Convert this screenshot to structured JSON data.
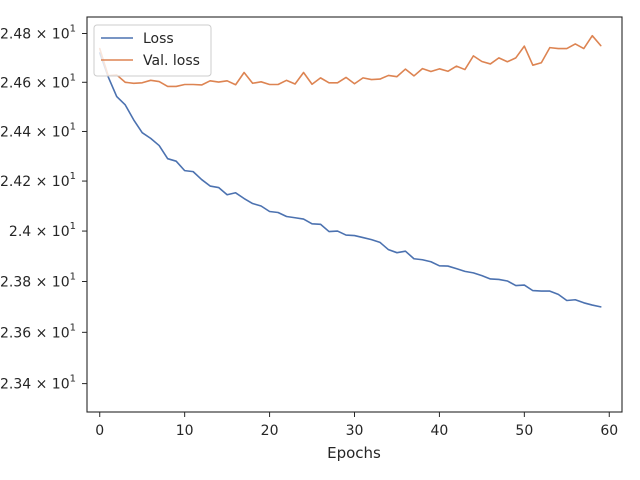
{
  "chart_data": {
    "type": "line",
    "title": "",
    "xlabel": "Epochs",
    "ylabel": "",
    "xlim": [
      -1.5,
      61.5
    ],
    "ylim": [
      23.29,
      24.868
    ],
    "y_log_scale": true,
    "grid": false,
    "legend_position": "top-left",
    "x_ticks": [
      0,
      10,
      20,
      30,
      40,
      50,
      60
    ],
    "x_tick_labels": [
      "0",
      "10",
      "20",
      "30",
      "40",
      "50",
      "60"
    ],
    "y_ticks": [
      23.4,
      23.6,
      23.8,
      24.0,
      24.2,
      24.4,
      24.6,
      24.8
    ],
    "y_tick_labels": [
      {
        "mant": "2.34",
        "exp": "1"
      },
      {
        "mant": "2.36",
        "exp": "1"
      },
      {
        "mant": "2.38",
        "exp": "1"
      },
      {
        "mant": "2.4",
        "exp": "1"
      },
      {
        "mant": "2.42",
        "exp": "1"
      },
      {
        "mant": "2.44",
        "exp": "1"
      },
      {
        "mant": "2.46",
        "exp": "1"
      },
      {
        "mant": "2.48",
        "exp": "1"
      }
    ],
    "x": [
      0,
      1,
      2,
      3,
      4,
      5,
      6,
      7,
      8,
      9,
      10,
      11,
      12,
      13,
      14,
      15,
      16,
      17,
      18,
      19,
      20,
      21,
      22,
      23,
      24,
      25,
      26,
      27,
      28,
      29,
      30,
      31,
      32,
      33,
      34,
      35,
      36,
      37,
      38,
      39,
      40,
      41,
      42,
      43,
      44,
      45,
      46,
      47,
      48,
      49,
      50,
      51,
      52,
      53,
      54,
      55,
      56,
      57,
      58,
      59
    ],
    "series": [
      {
        "name": "Loss",
        "color": "#4c72b0",
        "values": [
          24.72,
          24.622,
          24.542,
          24.508,
          24.447,
          24.395,
          24.372,
          24.343,
          24.29,
          24.28,
          24.242,
          24.238,
          24.206,
          24.18,
          24.174,
          24.145,
          24.153,
          24.13,
          24.11,
          24.1,
          24.078,
          24.074,
          24.058,
          24.053,
          24.048,
          24.029,
          24.027,
          23.998,
          24.0,
          23.984,
          23.982,
          23.974,
          23.966,
          23.955,
          23.926,
          23.914,
          23.92,
          23.89,
          23.886,
          23.878,
          23.862,
          23.861,
          23.851,
          23.84,
          23.834,
          23.823,
          23.81,
          23.808,
          23.802,
          23.784,
          23.786,
          23.764,
          23.762,
          23.762,
          23.749,
          23.725,
          23.728,
          23.716,
          23.707,
          23.7
        ]
      },
      {
        "name": "Val. loss",
        "color": "#dd8452",
        "values": [
          24.738,
          24.627,
          24.63,
          24.6,
          24.596,
          24.598,
          24.608,
          24.603,
          24.583,
          24.583,
          24.591,
          24.591,
          24.589,
          24.606,
          24.601,
          24.606,
          24.59,
          24.64,
          24.596,
          24.602,
          24.591,
          24.591,
          24.608,
          24.593,
          24.64,
          24.592,
          24.618,
          24.598,
          24.598,
          24.62,
          24.594,
          24.618,
          24.611,
          24.613,
          24.628,
          24.623,
          24.654,
          24.626,
          24.656,
          24.644,
          24.655,
          24.645,
          24.666,
          24.652,
          24.708,
          24.685,
          24.675,
          24.7,
          24.684,
          24.7,
          24.748,
          24.67,
          24.68,
          24.742,
          24.738,
          24.738,
          24.757,
          24.738,
          24.791,
          24.75
        ]
      }
    ]
  }
}
